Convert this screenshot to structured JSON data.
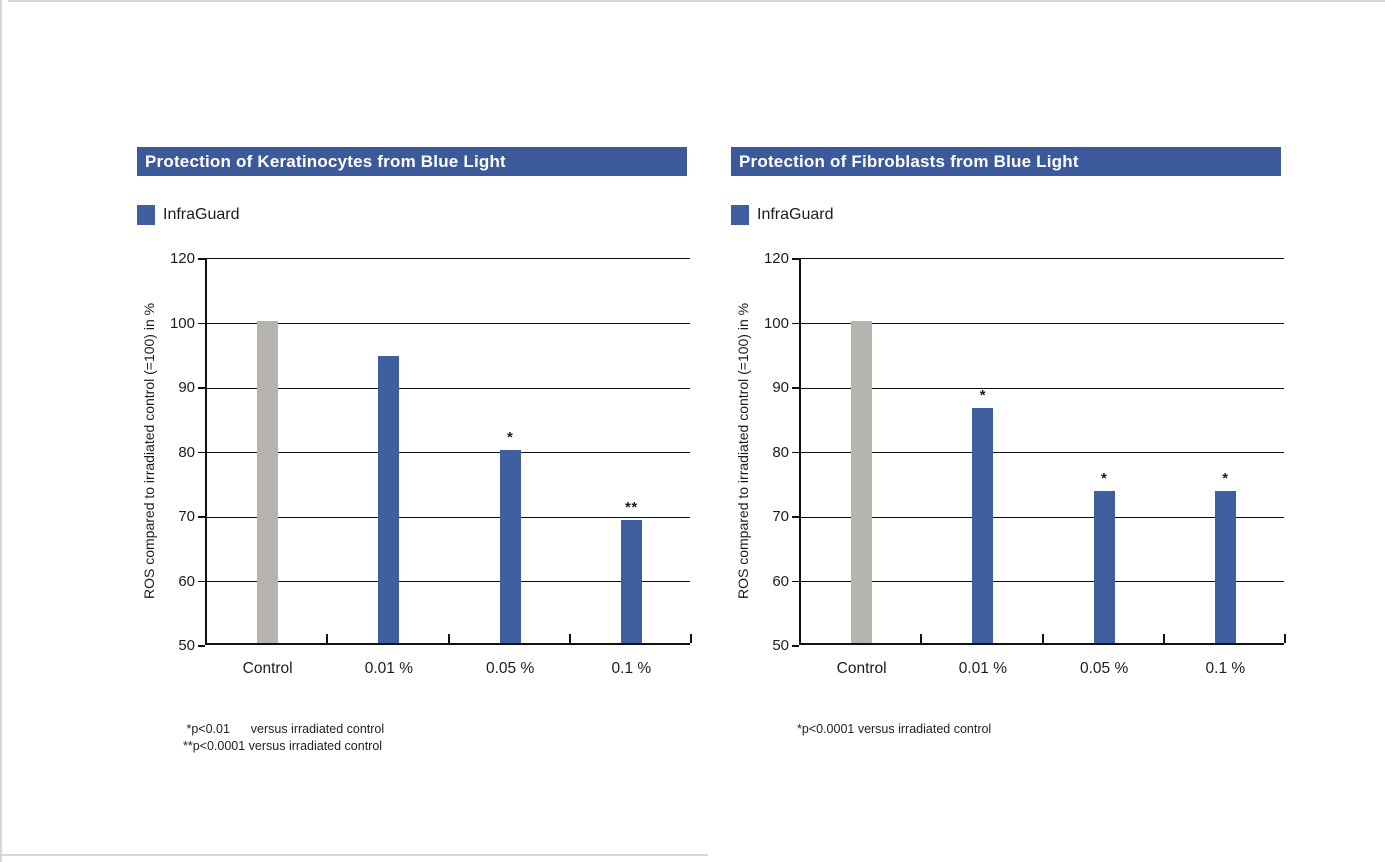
{
  "colors": {
    "banner_blue": "#3c5a9a",
    "bar_blue": "#3f5f9f",
    "bar_gray": "#b7b3ae",
    "axis_black": "#111111"
  },
  "chart_data": [
    {
      "type": "bar",
      "title": "Protection of Keratinocytes from Blue Light",
      "legend": [
        {
          "label": "InfraGuard",
          "color": "#3f5f9f"
        }
      ],
      "legend_position": "top-left",
      "ylabel": "ROS compared to irradiated control (=100) in %",
      "xlabel": "",
      "categories": [
        "Control",
        "0.01 %",
        "0.05 %",
        "0.1 %"
      ],
      "series": [
        {
          "name": "InfraGuard",
          "values": [
            100,
            94.5,
            80,
            69
          ],
          "bar_colors": [
            "#b7b3ae",
            "#3f5f9f",
            "#3f5f9f",
            "#3f5f9f"
          ],
          "annotations": [
            "",
            "",
            "*",
            "**"
          ]
        }
      ],
      "yticks": [
        50,
        60,
        70,
        80,
        90,
        100,
        120
      ],
      "ylim": [
        50,
        120
      ],
      "grid": "horizontal",
      "axis_note": "equal visual spacing between consecutive tick labels; 110 omitted",
      "footnotes": [
        " *p<0.01      versus irradiated control",
        "**p<0.0001 versus irradiated control"
      ]
    },
    {
      "type": "bar",
      "title": "Protection of Fibroblasts from Blue Light",
      "legend": [
        {
          "label": "InfraGuard",
          "color": "#3f5f9f"
        }
      ],
      "legend_position": "top-left",
      "ylabel": "ROS compared to irradiated control (=100) in %",
      "xlabel": "",
      "categories": [
        "Control",
        "0.01 %",
        "0.05 %",
        "0.1 %"
      ],
      "series": [
        {
          "name": "InfraGuard",
          "values": [
            100,
            86.5,
            73.5,
            73.5
          ],
          "bar_colors": [
            "#b7b3ae",
            "#3f5f9f",
            "#3f5f9f",
            "#3f5f9f"
          ],
          "annotations": [
            "",
            "*",
            "*",
            "*"
          ]
        }
      ],
      "yticks": [
        50,
        60,
        70,
        80,
        90,
        100,
        120
      ],
      "ylim": [
        50,
        120
      ],
      "grid": "horizontal",
      "axis_note": "equal visual spacing between consecutive tick labels; 110 omitted",
      "footnotes": [
        "*p<0.0001 versus irradiated control"
      ]
    }
  ]
}
